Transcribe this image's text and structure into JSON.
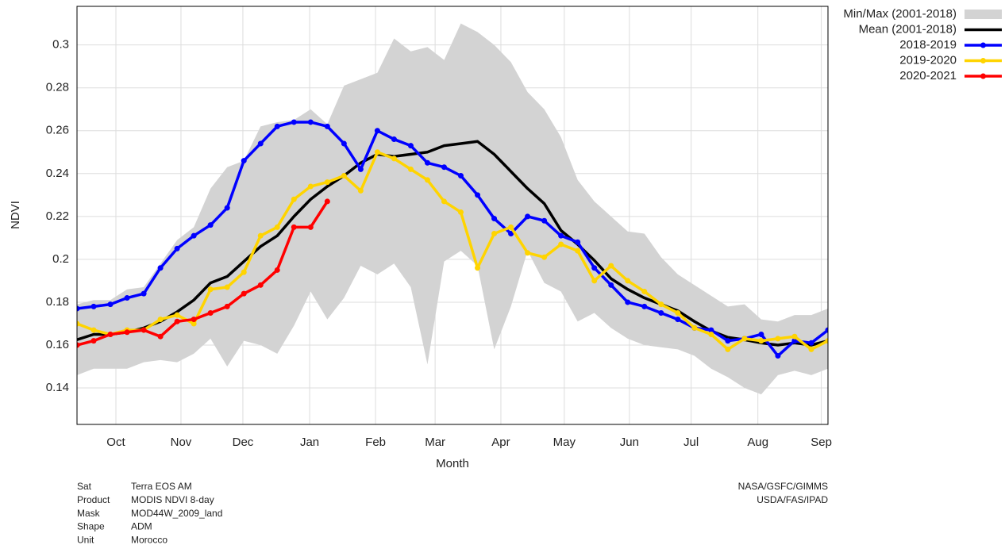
{
  "chart_data": {
    "type": "line",
    "y_label": "NDVI",
    "x_label": "Month",
    "x": [
      0,
      1,
      2,
      3,
      4,
      5,
      6,
      7,
      8,
      9,
      10,
      11,
      12,
      13,
      14,
      15,
      16,
      17,
      18,
      19,
      20,
      21,
      22,
      23,
      24,
      25,
      26,
      27,
      28,
      29,
      30,
      31,
      32,
      33,
      34,
      35,
      36,
      37,
      38,
      39,
      40,
      41,
      42,
      43,
      44,
      45
    ],
    "xlim": [
      0,
      45
    ],
    "xticks": [
      {
        "value": 2.33,
        "label": "Oct"
      },
      {
        "value": 6.23,
        "label": "Nov"
      },
      {
        "value": 9.94,
        "label": "Dec"
      },
      {
        "value": 13.94,
        "label": "Jan"
      },
      {
        "value": 17.89,
        "label": "Feb"
      },
      {
        "value": 21.46,
        "label": "Mar"
      },
      {
        "value": 25.4,
        "label": "Apr"
      },
      {
        "value": 29.2,
        "label": "May"
      },
      {
        "value": 33.1,
        "label": "Jun"
      },
      {
        "value": 36.8,
        "label": "Jul"
      },
      {
        "value": 40.8,
        "label": "Aug"
      },
      {
        "value": 44.6,
        "label": "Sep"
      }
    ],
    "ylim": [
      0.123,
      0.318
    ],
    "yticks": [
      0.14,
      0.16,
      0.18,
      0.2,
      0.22,
      0.24,
      0.26,
      0.28,
      0.3
    ],
    "grid": true,
    "legend": "top-right",
    "series": [
      {
        "name": "Min/Max (2001-2018)",
        "color": "#d3d3d3",
        "min": [
          0.146,
          0.149,
          0.149,
          0.149,
          0.152,
          0.153,
          0.152,
          0.156,
          0.163,
          0.15,
          0.162,
          0.16,
          0.156,
          0.169,
          0.185,
          0.172,
          0.182,
          0.197,
          0.193,
          0.198,
          0.187,
          0.151,
          0.199,
          0.204,
          0.197,
          0.158,
          0.178,
          0.204,
          0.189,
          0.185,
          0.171,
          0.175,
          0.168,
          0.163,
          0.16,
          0.159,
          0.158,
          0.155,
          0.149,
          0.145,
          0.14,
          0.137,
          0.146,
          0.148,
          0.146,
          0.149
        ],
        "max": [
          0.179,
          0.181,
          0.181,
          0.186,
          0.187,
          0.198,
          0.209,
          0.215,
          0.233,
          0.243,
          0.246,
          0.262,
          0.264,
          0.265,
          0.27,
          0.263,
          0.281,
          0.284,
          0.287,
          0.303,
          0.297,
          0.299,
          0.293,
          0.31,
          0.306,
          0.3,
          0.292,
          0.278,
          0.27,
          0.257,
          0.237,
          0.227,
          0.22,
          0.213,
          0.212,
          0.201,
          0.193,
          0.188,
          0.183,
          0.178,
          0.179,
          0.172,
          0.171,
          0.174,
          0.174,
          0.177
        ]
      },
      {
        "name": "Mean (2001-2018)",
        "color": "#000000",
        "markers": false,
        "values": [
          0.1625,
          0.165,
          0.165,
          0.166,
          0.168,
          0.171,
          0.1755,
          0.181,
          0.189,
          0.192,
          0.199,
          0.206,
          0.211,
          0.22,
          0.228,
          0.234,
          0.239,
          0.245,
          0.249,
          0.248,
          0.249,
          0.25,
          0.253,
          0.254,
          0.255,
          0.249,
          0.241,
          0.233,
          0.226,
          0.2135,
          0.207,
          0.1995,
          0.191,
          0.186,
          0.182,
          0.179,
          0.176,
          0.171,
          0.1666,
          0.1636,
          0.1625,
          0.161,
          0.16,
          0.161,
          0.16,
          0.162
        ]
      },
      {
        "name": "2018-2019",
        "color": "#0000ff",
        "markers": true,
        "values": [
          0.177,
          0.178,
          0.179,
          0.182,
          0.184,
          0.196,
          0.205,
          0.211,
          0.216,
          0.224,
          0.246,
          0.254,
          0.262,
          0.264,
          0.264,
          0.262,
          0.254,
          0.242,
          0.26,
          0.256,
          0.253,
          0.245,
          0.243,
          0.239,
          0.23,
          0.219,
          0.212,
          0.22,
          0.218,
          0.211,
          0.208,
          0.196,
          0.188,
          0.18,
          0.178,
          0.175,
          0.172,
          0.168,
          0.167,
          0.162,
          0.163,
          0.165,
          0.155,
          0.162,
          0.161,
          0.167
        ]
      },
      {
        "name": "2019-2020",
        "color": "#ffd400",
        "markers": true,
        "values": [
          0.17,
          0.167,
          0.165,
          0.167,
          0.167,
          0.172,
          0.174,
          0.17,
          0.186,
          0.187,
          0.194,
          0.211,
          0.215,
          0.228,
          0.234,
          0.236,
          0.239,
          0.232,
          0.25,
          0.247,
          0.242,
          0.237,
          0.227,
          0.222,
          0.196,
          0.212,
          0.215,
          0.203,
          0.201,
          0.207,
          0.204,
          0.19,
          0.197,
          0.19,
          0.185,
          0.179,
          0.175,
          0.168,
          0.165,
          0.158,
          0.163,
          0.162,
          0.163,
          0.164,
          0.158,
          0.162
        ]
      },
      {
        "name": "2020-2021",
        "color": "#ff0000",
        "markers": true,
        "values": [
          0.16,
          0.162,
          0.165,
          0.166,
          0.167,
          0.164,
          0.171,
          0.172,
          0.175,
          0.178,
          0.184,
          0.188,
          0.195,
          0.215,
          0.215,
          0.227,
          null,
          null,
          null,
          null,
          null,
          null,
          null,
          null,
          null,
          null,
          null,
          null,
          null,
          null,
          null,
          null,
          null,
          null,
          null,
          null,
          null,
          null,
          null,
          null,
          null,
          null,
          null,
          null,
          null,
          null
        ]
      }
    ],
    "metadata": [
      {
        "label": "Sat",
        "value": "Terra EOS AM"
      },
      {
        "label": "Product",
        "value": "MODIS NDVI 8-day"
      },
      {
        "label": "Mask",
        "value": "MOD44W_2009_land"
      },
      {
        "label": "Shape",
        "value": "ADM"
      },
      {
        "label": "Unit",
        "value": "Morocco"
      }
    ],
    "credits": [
      "NASA/GSFC/GIMMS",
      "USDA/FAS/IPAD"
    ]
  }
}
